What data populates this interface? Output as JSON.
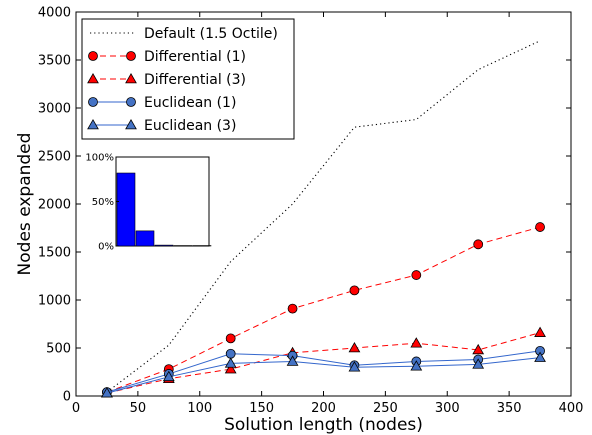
{
  "chart_data": {
    "type": "line",
    "title": "",
    "xlabel": "Solution length (nodes)",
    "ylabel": "Nodes expanded",
    "xlim": [
      0,
      400
    ],
    "ylim": [
      0,
      4000
    ],
    "xticks": [
      0,
      50,
      100,
      150,
      200,
      250,
      300,
      350,
      400
    ],
    "yticks": [
      0,
      500,
      1000,
      1500,
      2000,
      2500,
      3000,
      3500,
      4000
    ],
    "grid": false,
    "legend_position": "top-left",
    "x": [
      25,
      75,
      125,
      175,
      225,
      275,
      325,
      375
    ],
    "series": [
      {
        "name": "Default (1.5 Octile)",
        "style": "dotted",
        "marker": "none",
        "color": "#000000",
        "values": [
          40,
          530,
          1400,
          2000,
          2800,
          2880,
          3400,
          3700
        ]
      },
      {
        "name": "Differential (1)",
        "style": "dashed",
        "marker": "circle",
        "color": "#ff0000",
        "values": [
          40,
          280,
          600,
          910,
          1100,
          1260,
          1580,
          1760
        ]
      },
      {
        "name": "Differential (3)",
        "style": "dashed",
        "marker": "triangle",
        "color": "#ff0000",
        "values": [
          30,
          180,
          280,
          450,
          500,
          550,
          480,
          660
        ]
      },
      {
        "name": "Euclidean (1)",
        "style": "solid",
        "marker": "circle",
        "color": "#3366cc",
        "values": [
          40,
          230,
          440,
          420,
          320,
          360,
          380,
          470
        ]
      },
      {
        "name": "Euclidean (3)",
        "style": "solid",
        "marker": "triangle",
        "color": "#3366cc",
        "values": [
          30,
          200,
          340,
          360,
          300,
          310,
          330,
          400
        ]
      }
    ],
    "inset": {
      "type": "bar",
      "ylim": [
        0,
        100
      ],
      "yticks": [
        "0%",
        "50%",
        "100%"
      ],
      "color": "#0000ff",
      "values": [
        82,
        17,
        1,
        0.5,
        0.5
      ]
    }
  }
}
